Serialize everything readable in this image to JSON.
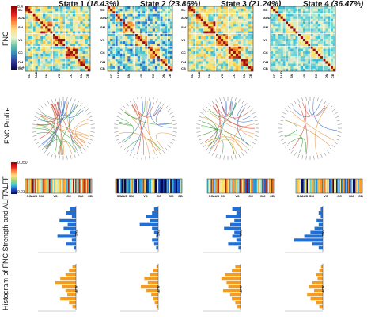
{
  "figure": {
    "row_labels": {
      "fnc": "FNC",
      "profile": "FNC Profile",
      "alff": "ALFF",
      "histogram": "Histogram of FNC Strength and ALFF"
    },
    "fnc_colorbar": {
      "max": "0.4",
      "min": "-0.4"
    },
    "alff_colorbar": {
      "min": "0.035",
      "max": "0.050"
    },
    "states": [
      {
        "name": "State 1",
        "pct": "(18.43%)"
      },
      {
        "name": "State 2",
        "pct": "(23.86%)"
      },
      {
        "name": "State 3",
        "pct": "(21.24%)"
      },
      {
        "name": "State 4",
        "pct": "(36.47%)"
      }
    ],
    "networks_left": [
      "SC",
      "AUD",
      "SM",
      "VS",
      "CC",
      "DM",
      "CB"
    ],
    "networks_bottom": [
      "SC",
      "AUD",
      "SM",
      "VS",
      "CC",
      "DM",
      "CB"
    ],
    "alff_bar_labels": [
      "SC",
      "AUD",
      "SM",
      "VS",
      "CC",
      "DM",
      "CB"
    ],
    "hist_labels": {
      "fnc": "FNC",
      "alff": "ALFF"
    },
    "colors": {
      "red": "#c81e1e",
      "orange": "#f08c14",
      "yellow": "#f5e63c",
      "cyan": "#28c8dc",
      "blue": "#1e50c8",
      "darkblue": "#0a1e6e",
      "hist_blue": "#1f6fd6",
      "hist_orange": "#f39c1f",
      "profile_green": "#3c9a3c",
      "profile_orange": "#e8913a",
      "profile_blue": "#3a6fc8",
      "profile_red": "#c8463c"
    }
  }
}
